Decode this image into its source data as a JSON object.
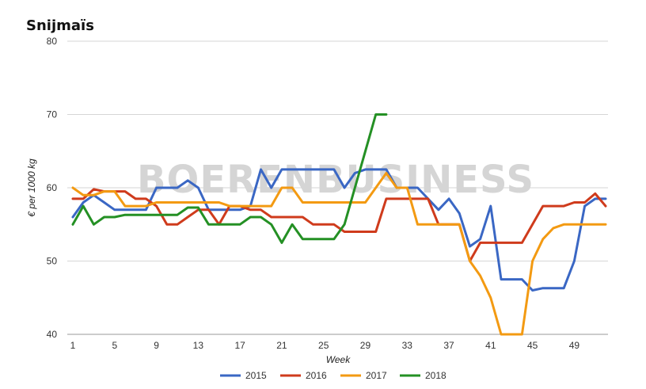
{
  "chart_data": {
    "type": "line",
    "title": "Snijmaïs",
    "xlabel": "Week",
    "ylabel": "€ per 1000 kg",
    "watermark": "BOERENBUSINESS",
    "ylim": [
      40,
      80
    ],
    "yticks": [
      40,
      50,
      60,
      70,
      80
    ],
    "xlim": [
      1,
      52
    ],
    "xticks": [
      1,
      5,
      9,
      13,
      17,
      21,
      25,
      29,
      33,
      37,
      41,
      45,
      49
    ],
    "grid": true,
    "legend_position": "bottom",
    "series": [
      {
        "name": "2015",
        "color": "#3a67c4",
        "x": [
          1,
          2,
          3,
          4,
          5,
          6,
          7,
          8,
          9,
          10,
          11,
          12,
          13,
          14,
          15,
          16,
          17,
          18,
          19,
          20,
          21,
          22,
          23,
          24,
          25,
          26,
          27,
          28,
          29,
          30,
          31,
          32,
          33,
          34,
          35,
          36,
          37,
          38,
          39,
          40,
          41,
          42,
          43,
          44,
          45,
          46,
          47,
          48,
          49,
          50,
          51,
          52
        ],
        "y": [
          56,
          58,
          59,
          58,
          57,
          57,
          57,
          57,
          60,
          60,
          60,
          61,
          60,
          57,
          57,
          57,
          57,
          57.5,
          62.5,
          60,
          62.5,
          62.5,
          62.5,
          62.5,
          62.5,
          62.5,
          60,
          62,
          62.5,
          62.5,
          62.5,
          60,
          60,
          60,
          58.5,
          57,
          58.5,
          56.5,
          52,
          53,
          57.5,
          47.5,
          47.5,
          47.5,
          46,
          46.3,
          46.3,
          46.3,
          50,
          57.5,
          58.5,
          58.5
        ]
      },
      {
        "name": "2016",
        "color": "#cf3b1c",
        "x": [
          1,
          2,
          3,
          4,
          5,
          6,
          7,
          8,
          9,
          10,
          11,
          12,
          13,
          14,
          15,
          16,
          17,
          18,
          19,
          20,
          21,
          22,
          23,
          24,
          25,
          26,
          27,
          28,
          29,
          30,
          31,
          32,
          33,
          34,
          35,
          36,
          37,
          38,
          39,
          40,
          41,
          42,
          43,
          44,
          45,
          46,
          47,
          48,
          49,
          50,
          51,
          52
        ],
        "y": [
          58.5,
          58.5,
          59.8,
          59.5,
          59.5,
          59.5,
          58.5,
          58.5,
          57.5,
          55,
          55,
          56,
          57,
          57,
          55,
          57.5,
          57.5,
          57,
          57,
          56,
          56,
          56,
          56,
          55,
          55,
          55,
          54,
          54,
          54,
          54,
          58.5,
          58.5,
          58.5,
          58.5,
          58.5,
          55,
          55,
          55,
          50,
          52.5,
          52.5,
          52.5,
          52.5,
          52.5,
          55,
          57.5,
          57.5,
          57.5,
          58,
          58,
          59.2,
          57.5
        ]
      },
      {
        "name": "2017",
        "color": "#f39a12",
        "x": [
          1,
          2,
          3,
          4,
          5,
          6,
          7,
          8,
          9,
          10,
          11,
          12,
          13,
          14,
          15,
          16,
          17,
          18,
          19,
          20,
          21,
          22,
          23,
          24,
          25,
          26,
          27,
          28,
          29,
          30,
          31,
          32,
          33,
          34,
          35,
          36,
          37,
          38,
          39,
          40,
          41,
          42,
          43,
          44,
          45,
          46,
          47,
          48,
          49,
          50,
          51,
          52
        ],
        "y": [
          60,
          59,
          59,
          59.5,
          59.5,
          57.5,
          57.5,
          57.5,
          58,
          58,
          58,
          58,
          58,
          58,
          58,
          57.5,
          57.5,
          57.5,
          57.5,
          57.5,
          60,
          60,
          58,
          58,
          58,
          58,
          58,
          58,
          58,
          60,
          62,
          60,
          60,
          55,
          55,
          55,
          55,
          55,
          50,
          48,
          45,
          40,
          40,
          40,
          50,
          53,
          54.5,
          55,
          55,
          55,
          55,
          55
        ]
      },
      {
        "name": "2018",
        "color": "#249024",
        "x": [
          1,
          2,
          3,
          4,
          5,
          6,
          7,
          8,
          9,
          10,
          11,
          12,
          13,
          14,
          15,
          16,
          17,
          18,
          19,
          20,
          21,
          22,
          23,
          24,
          25,
          26,
          27,
          28,
          29,
          30,
          31
        ],
        "y": [
          55,
          57.5,
          55,
          56,
          56,
          56.3,
          56.3,
          56.3,
          56.3,
          56.3,
          56.3,
          57.3,
          57.3,
          55,
          55,
          55,
          55,
          56,
          56,
          55,
          52.5,
          55,
          53,
          53,
          53,
          53,
          55,
          60,
          65,
          70,
          70
        ]
      }
    ]
  }
}
